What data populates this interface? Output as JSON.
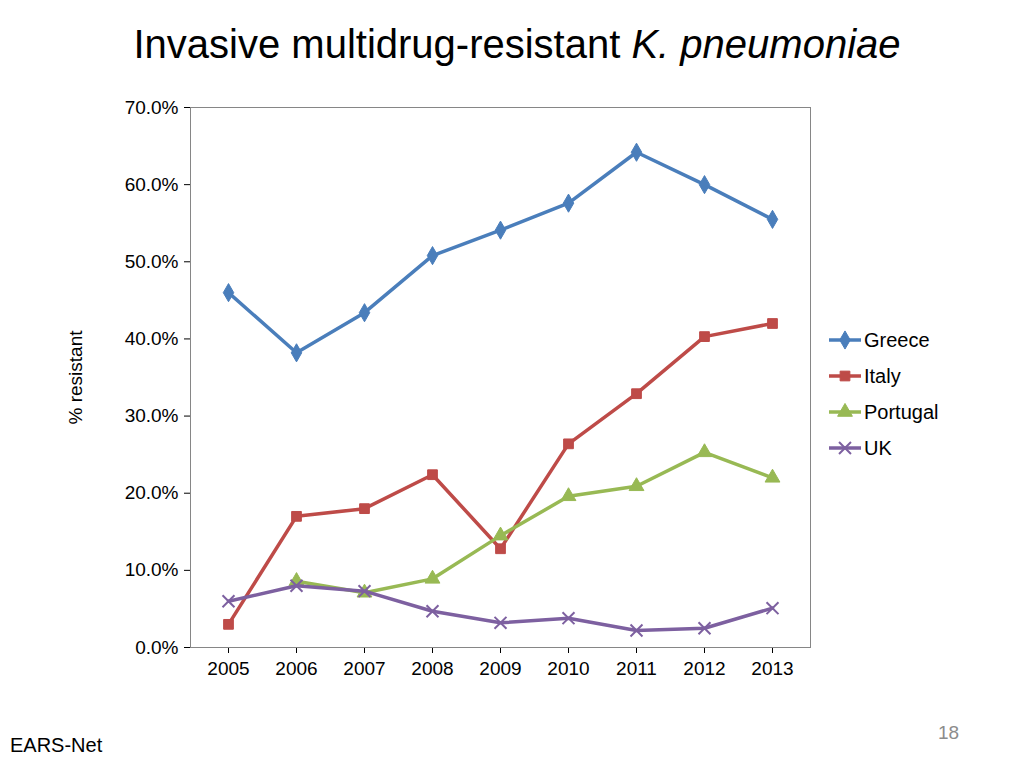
{
  "chart_data": {
    "type": "line",
    "title": "Invasive multidrug-resistant K. pneumoniae",
    "y_label": "% resistant",
    "source": "EARS-Net",
    "slide_number": "18",
    "categories": [
      "2005",
      "2006",
      "2007",
      "2008",
      "2009",
      "2010",
      "2011",
      "2012",
      "2013"
    ],
    "series": [
      {
        "name": "Greece",
        "color": "#4a7ebb",
        "marker": "diamond",
        "values": [
          46.0,
          38.2,
          43.4,
          50.8,
          54.1,
          57.6,
          64.2,
          60.0,
          55.5
        ]
      },
      {
        "name": "Italy",
        "color": "#be4b48",
        "marker": "square",
        "values": [
          3.0,
          17.0,
          18.0,
          22.4,
          12.8,
          26.4,
          32.9,
          40.3,
          42.0
        ]
      },
      {
        "name": "Portugal",
        "color": "#98b954",
        "marker": "triangle",
        "values": [
          null,
          8.6,
          7.1,
          8.9,
          14.5,
          19.6,
          20.9,
          25.3,
          22.0
        ]
      },
      {
        "name": "UK",
        "color": "#7d60a0",
        "marker": "x",
        "values": [
          6.0,
          8.0,
          7.3,
          4.7,
          3.2,
          3.8,
          2.2,
          2.5,
          5.1
        ]
      }
    ],
    "ylim": [
      0,
      70
    ],
    "yticks": [
      {
        "value": 0,
        "label": "0.0%"
      },
      {
        "value": 10,
        "label": "10.0%"
      },
      {
        "value": 20,
        "label": "20.0%"
      },
      {
        "value": 30,
        "label": "30.0%"
      },
      {
        "value": 40,
        "label": "40.0%"
      },
      {
        "value": 50,
        "label": "50.0%"
      },
      {
        "value": 60,
        "label": "60.0%"
      },
      {
        "value": 70,
        "label": "70.0%"
      }
    ],
    "grid": false,
    "legend": "right"
  }
}
